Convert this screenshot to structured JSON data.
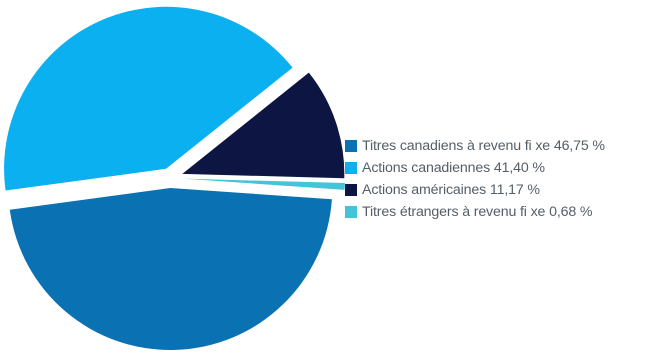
{
  "chart_data": {
    "type": "pie",
    "title": "",
    "legend_position": "right",
    "categories": [
      "Titres canadiens à revenu fi xe",
      "Actions canadiennes",
      "Actions américaines",
      "Titres étrangers à revenu fi xe"
    ],
    "values": [
      46.75,
      41.4,
      11.17,
      0.68
    ],
    "value_labels": [
      "46,75 %",
      "41,40 %",
      "11,17 %",
      "0,68 %"
    ],
    "colors": [
      "#0a71b2",
      "#0ab0ef",
      "#0d1543",
      "#43c4d8"
    ],
    "exploded": true
  },
  "legend": {
    "items": [
      {
        "label": "Titres canadiens à revenu fi xe 46,75 %",
        "color": "#0a71b2"
      },
      {
        "label": "Actions canadiennes 41,40 %",
        "color": "#0ab0ef"
      },
      {
        "label": "Actions américaines 11,17 %",
        "color": "#0d1543"
      },
      {
        "label": "Titres étrangers à revenu fi xe 0,68 %",
        "color": "#43c4d8"
      }
    ]
  }
}
